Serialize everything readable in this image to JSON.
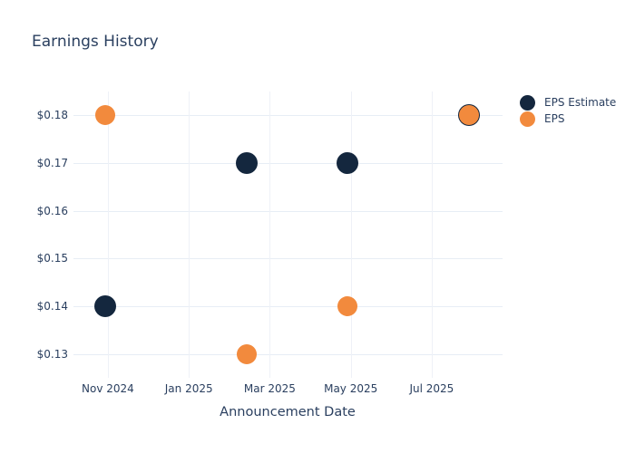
{
  "title": "Earnings History",
  "colors": {
    "eps_estimate": "#14273e",
    "eps": "#f28a3d",
    "text": "#2a3f5f",
    "grid_horizontal": "#e7edf5",
    "grid_vertical": "#eef1f7",
    "background": "#ffffff"
  },
  "chart_data": {
    "type": "scatter",
    "title": "Earnings History",
    "xlabel": "Announcement Date",
    "ylabel": "",
    "grid": true,
    "legend_position": "top-right-outside",
    "x_axis": {
      "unit": "months since Nov 2024",
      "range": [
        -0.85,
        9.75
      ],
      "ticks": [
        {
          "label": "Nov 2024",
          "m": 0
        },
        {
          "label": "Jan 2025",
          "m": 2
        },
        {
          "label": "Mar 2025",
          "m": 4
        },
        {
          "label": "May 2025",
          "m": 6
        },
        {
          "label": "Jul 2025",
          "m": 8
        }
      ]
    },
    "y_axis": {
      "range": [
        0.125,
        0.185
      ],
      "tick_prefix": "$",
      "ticks": [
        {
          "label": "$0.18",
          "v": 0.18
        },
        {
          "label": "$0.17",
          "v": 0.17
        },
        {
          "label": "$0.16",
          "v": 0.16
        },
        {
          "label": "$0.15",
          "v": 0.15
        },
        {
          "label": "$0.14",
          "v": 0.14
        },
        {
          "label": "$0.13",
          "v": 0.13
        }
      ]
    },
    "series": [
      {
        "name": "EPS Estimate",
        "color": "#14273e",
        "marker_size_px": 24,
        "points": [
          {
            "approx_date": "2024-10-30",
            "m": -0.06,
            "value": 0.14
          },
          {
            "approx_date": "2025-02-13",
            "m": 3.43,
            "value": 0.17
          },
          {
            "approx_date": "2025-04-29",
            "m": 5.92,
            "value": 0.17
          },
          {
            "approx_date": "2025-07-29",
            "m": 8.93,
            "value": 0.18
          }
        ]
      },
      {
        "name": "EPS",
        "color": "#f28a3d",
        "marker_size_px": 22,
        "points": [
          {
            "approx_date": "2024-10-30",
            "m": -0.06,
            "value": 0.18
          },
          {
            "approx_date": "2025-02-13",
            "m": 3.43,
            "value": 0.13
          },
          {
            "approx_date": "2025-04-29",
            "m": 5.92,
            "value": 0.14
          },
          {
            "approx_date": "2025-07-29",
            "m": 8.93,
            "value": 0.18
          }
        ]
      }
    ]
  }
}
